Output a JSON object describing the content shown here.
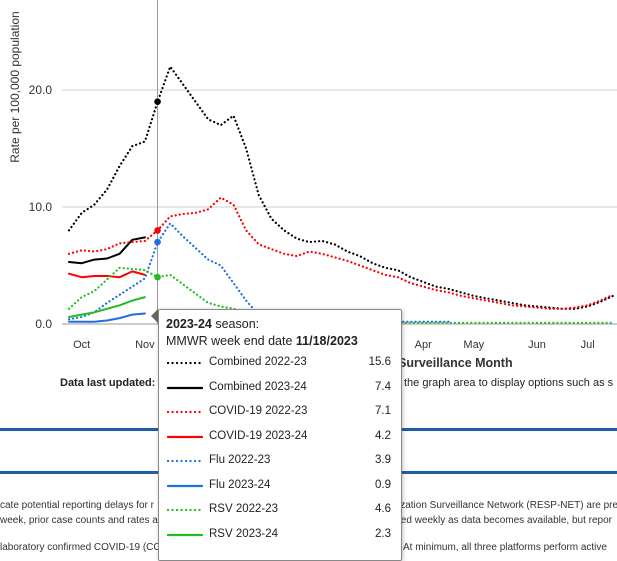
{
  "chart_data": {
    "type": "line",
    "ylabel": "Rate per 100,000 population",
    "xlabel": "Surveillance Month",
    "yticks": [
      "0.0",
      "10.0",
      "20.0"
    ],
    "ylim": [
      0,
      25
    ],
    "x_tick_labels": [
      {
        "label": "Oct",
        "week": 1
      },
      {
        "label": "Nov",
        "week": 6
      },
      {
        "label": "Apr",
        "week": 28
      },
      {
        "label": "May",
        "week": 32
      },
      {
        "label": "Jun",
        "week": 37
      },
      {
        "label": "Jul",
        "week": 41
      }
    ],
    "hover_week": 7,
    "series": [
      {
        "name": "Combined 2022-23",
        "color": "#000000",
        "dash": true,
        "values": [
          8.0,
          9.5,
          10.2,
          11.5,
          13.5,
          15.2,
          15.6,
          19.0,
          22.0,
          20.5,
          19.0,
          17.5,
          17.0,
          17.8,
          15.0,
          11.0,
          9.0,
          8.0,
          7.3,
          7.0,
          7.1,
          6.8,
          6.2,
          5.8,
          5.2,
          4.8,
          4.6,
          4.0,
          3.6,
          3.2,
          3.0,
          2.7,
          2.4,
          2.2,
          2.0,
          1.8,
          1.6,
          1.5,
          1.4,
          1.3,
          1.3,
          1.5,
          1.9,
          2.4
        ]
      },
      {
        "name": "Combined 2023-24",
        "color": "#000000",
        "dash": false,
        "values": [
          5.3,
          5.2,
          5.5,
          5.6,
          6.0,
          7.2,
          7.4
        ]
      },
      {
        "name": "COVID-19 2022-23",
        "color": "#ff0000",
        "dash": true,
        "values": [
          6.0,
          6.3,
          6.2,
          6.4,
          6.9,
          7.0,
          7.1,
          8.0,
          9.2,
          9.4,
          9.5,
          9.8,
          10.8,
          10.2,
          8.0,
          6.8,
          6.4,
          6.0,
          5.8,
          6.2,
          6.0,
          5.7,
          5.4,
          5.0,
          4.6,
          4.2,
          4.0,
          3.5,
          3.2,
          2.9,
          2.7,
          2.4,
          2.2,
          2.0,
          1.8,
          1.6,
          1.5,
          1.4,
          1.3,
          1.3,
          1.4,
          1.6,
          2.0,
          2.5
        ]
      },
      {
        "name": "COVID-19 2023-24",
        "color": "#ff0000",
        "dash": false,
        "values": [
          4.3,
          4.0,
          4.1,
          4.1,
          4.0,
          4.5,
          4.2
        ]
      },
      {
        "name": "Flu 2022-23",
        "color": "#1e6fe0",
        "dash": true,
        "values": [
          0.4,
          0.6,
          1.0,
          1.8,
          2.5,
          3.2,
          3.9,
          7.0,
          8.6,
          7.5,
          6.5,
          5.5,
          5.0,
          3.5,
          2.0,
          0.8,
          0.4,
          0.3,
          0.2,
          0.2,
          0.2,
          0.2,
          0.2,
          0.2,
          0.2,
          0.2,
          0.2,
          0.2,
          0.2,
          0.2,
          0.2
        ]
      },
      {
        "name": "Flu 2023-24",
        "color": "#1e6fe0",
        "dash": false,
        "values": [
          0.2,
          0.2,
          0.2,
          0.3,
          0.5,
          0.8,
          0.9
        ]
      },
      {
        "name": "RSV 2022-23",
        "color": "#22bb22",
        "dash": true,
        "values": [
          1.3,
          2.3,
          2.8,
          3.8,
          4.8,
          4.7,
          4.6,
          4.0,
          4.2,
          3.4,
          2.6,
          1.8,
          1.5,
          1.3,
          1.0,
          0.8,
          0.6,
          0.5,
          0.4,
          0.3,
          0.3,
          0.2,
          0.2,
          0.2,
          0.2,
          0.1,
          0.1,
          0.1,
          0.1,
          0.1,
          0.1,
          0.1,
          0.1,
          0.1,
          0.1,
          0.1,
          0.1,
          0.1,
          0.1,
          0.1,
          0.1,
          0.1,
          0.1,
          0.1
        ]
      },
      {
        "name": "RSV 2023-24",
        "color": "#22bb22",
        "dash": false,
        "values": [
          0.6,
          0.8,
          1.0,
          1.3,
          1.6,
          2.0,
          2.3
        ]
      }
    ]
  },
  "page": {
    "data_last_updated_label": "Data last updated:",
    "click_hint": "the graph area to display options such as s",
    "footnote_line1_left": "cate potential reporting delays for r",
    "footnote_line1_right": "ization Surveillance Network (RESP-NET) are prel",
    "footnote_line2_left": "week, prior case counts and rates a",
    "footnote_line2_right": "ted weekly as data becomes available, but repor",
    "footnote_line3_left": "laboratory confirmed COVID-19 (CO",
    "footnote_line3_right": ". At minimum, all three platforms perform active"
  },
  "tooltip": {
    "season": "2023-24",
    "season_suffix": " season:",
    "week_label": "MMWR week end date ",
    "week_date": "11/18/2023",
    "rows": [
      {
        "label": "Combined 2022-23",
        "value": "15.6",
        "color": "#000000",
        "dash": true
      },
      {
        "label": "Combined 2023-24",
        "value": "7.4",
        "color": "#000000",
        "dash": false
      },
      {
        "label": "COVID-19 2022-23",
        "value": "7.1",
        "color": "#ff0000",
        "dash": true
      },
      {
        "label": "COVID-19 2023-24",
        "value": "4.2",
        "color": "#ff0000",
        "dash": false
      },
      {
        "label": "Flu 2022-23",
        "value": "3.9",
        "color": "#1e6fe0",
        "dash": true
      },
      {
        "label": "Flu 2023-24",
        "value": "0.9",
        "color": "#1e6fe0",
        "dash": false
      },
      {
        "label": "RSV 2022-23",
        "value": "4.6",
        "color": "#22bb22",
        "dash": true
      },
      {
        "label": "RSV 2023-24",
        "value": "2.3",
        "color": "#22bb22",
        "dash": false
      }
    ]
  }
}
